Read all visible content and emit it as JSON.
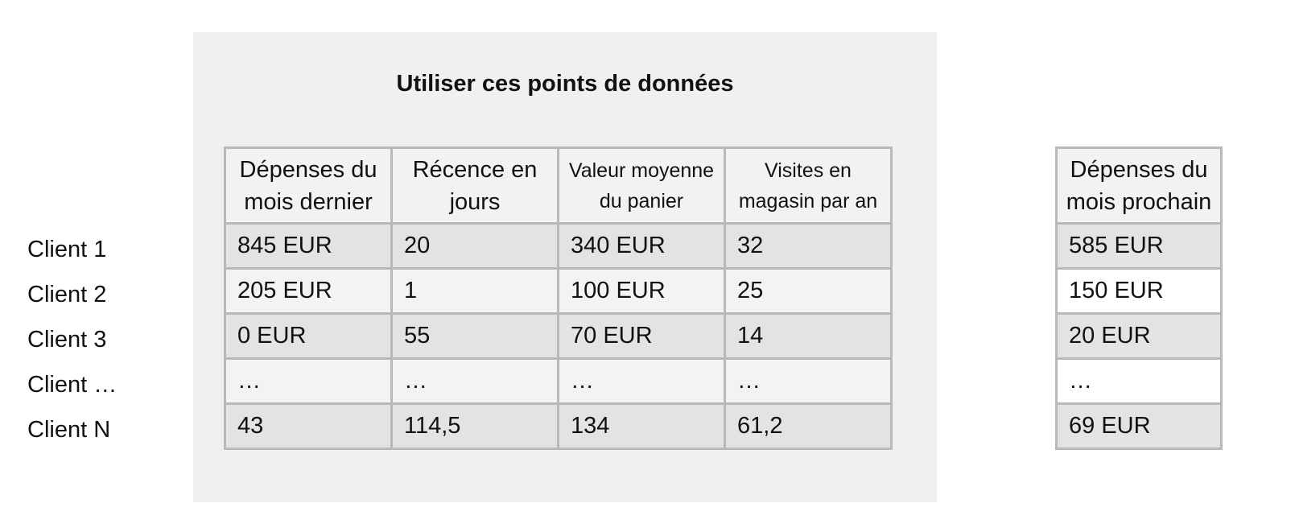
{
  "title": "Utiliser ces points de données",
  "main_table": {
    "headers": [
      "Dépenses du mois dernier",
      "Récence en jours",
      "Valeur moyenne du panier",
      "Visites en magasin par an"
    ],
    "rows": [
      [
        "845 EUR",
        "20",
        "340 EUR",
        "32"
      ],
      [
        "205 EUR",
        "1",
        "100 EUR",
        "25"
      ],
      [
        "0 EUR",
        "55",
        "70 EUR",
        "14"
      ],
      [
        "…",
        "…",
        "…",
        "…"
      ],
      [
        "43",
        "114,5",
        "134",
        "61,2"
      ]
    ]
  },
  "row_labels": [
    "Client 1",
    "Client 2",
    "Client 3",
    "Client …",
    "Client N"
  ],
  "target_table": {
    "header": "Dépenses du mois prochain",
    "rows": [
      "585 EUR",
      "150 EUR",
      "20 EUR",
      "…",
      "69 EUR"
    ]
  },
  "colors": {
    "panel_background": "#f0f0f0",
    "border": "#b9b9b9",
    "row_shaded": "#e3e3e3",
    "row_light": "#f3f3f3"
  }
}
